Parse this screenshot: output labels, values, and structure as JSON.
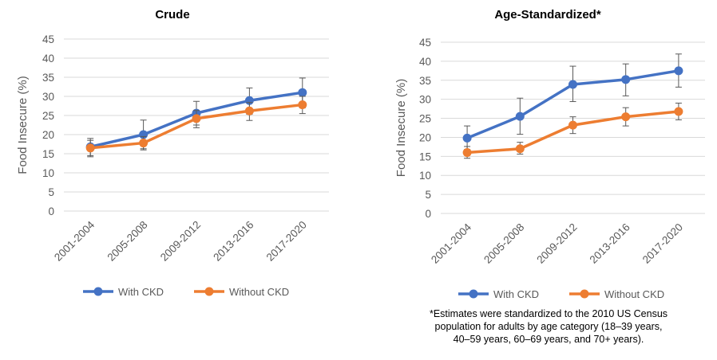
{
  "chart_data": [
    {
      "type": "line",
      "title": "Crude",
      "xlabel": "",
      "ylabel": "Food Insecure (%)",
      "ylim": [
        0,
        45
      ],
      "yticks": [
        0,
        5,
        10,
        15,
        20,
        25,
        30,
        35,
        40,
        45
      ],
      "categories": [
        "2001-2004",
        "2005-2008",
        "2009-2012",
        "2013-2016",
        "2017-2020"
      ],
      "grid": true,
      "legend_position": "bottom",
      "series": [
        {
          "name": "With CKD",
          "color": "#4472c4",
          "values": [
            16.8,
            20.0,
            25.6,
            28.9,
            31.0
          ],
          "err_low": [
            14.5,
            16.3,
            22.5,
            25.3,
            27.0
          ],
          "err_high": [
            19.0,
            23.8,
            28.7,
            32.2,
            34.8
          ]
        },
        {
          "name": "Without CKD",
          "color": "#ed7d31",
          "values": [
            16.5,
            17.8,
            24.2,
            26.2,
            27.8
          ],
          "err_low": [
            14.2,
            16.0,
            21.8,
            23.7,
            25.5
          ],
          "err_high": [
            18.5,
            19.5,
            26.3,
            28.4,
            30.0
          ]
        }
      ]
    },
    {
      "type": "line",
      "title": "Age-Standardized*",
      "xlabel": "",
      "ylabel": "Food Insecure (%)",
      "ylim": [
        0,
        45
      ],
      "yticks": [
        0,
        5,
        10,
        15,
        20,
        25,
        30,
        35,
        40,
        45
      ],
      "categories": [
        "2001-2004",
        "2005-2008",
        "2009-2012",
        "2013-2016",
        "2017-2020"
      ],
      "grid": true,
      "legend_position": "bottom",
      "series": [
        {
          "name": "With CKD",
          "color": "#4472c4",
          "values": [
            19.8,
            25.5,
            33.9,
            35.2,
            37.5
          ],
          "err_low": [
            16.8,
            20.8,
            29.4,
            30.9,
            33.2
          ],
          "err_high": [
            23.0,
            30.3,
            38.7,
            39.3,
            41.9
          ]
        },
        {
          "name": "Without CKD",
          "color": "#ed7d31",
          "values": [
            16.0,
            17.0,
            23.2,
            25.4,
            26.8
          ],
          "err_low": [
            14.5,
            15.6,
            21.0,
            23.0,
            24.6
          ],
          "err_high": [
            17.6,
            18.7,
            25.4,
            27.8,
            29.0
          ]
        }
      ]
    }
  ],
  "footnote": [
    "*Estimates were standardized to the 2010 US Census",
    "population for adults by age category (18–39 years,",
    "40–59 years, 60–69 years, and 70+ years)."
  ]
}
